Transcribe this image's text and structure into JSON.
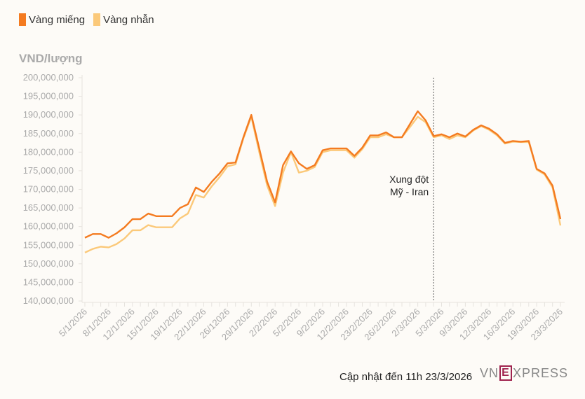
{
  "legend": [
    {
      "name": "Vàng miếng",
      "color": "#f47b20"
    },
    {
      "name": "Vàng nhẫn",
      "color": "#fbc97a"
    }
  ],
  "footer": {
    "updated": "Cập nhật đến 11h 23/3/2026",
    "logo": "VNEXPRESS"
  },
  "chart_data": {
    "type": "line",
    "ylabel": "VND/lượng",
    "ylim": [
      140000000,
      200000000
    ],
    "yticks": [
      140000000,
      145000000,
      150000000,
      155000000,
      160000000,
      165000000,
      170000000,
      175000000,
      180000000,
      185000000,
      190000000,
      195000000,
      200000000
    ],
    "ytick_labels": [
      "140,000,000",
      "145,000,000",
      "150,000,000",
      "155,000,000",
      "160,000,000",
      "165,000,000",
      "170,000,000",
      "175,000,000",
      "180,000,000",
      "185,000,000",
      "190,000,000",
      "195,000,000",
      "200,000,000"
    ],
    "x_tick_every": 3,
    "x_tick_labels": [
      "5/1/2026",
      "8/1/2026",
      "12/1/2026",
      "15/1/2026",
      "19/1/2026",
      "22/1/2026",
      "26/12026",
      "29/1/2026",
      "2/2/2026",
      "5/2/2026",
      "9/2/2026",
      "12/2/2026",
      "23/2/2026",
      "26/2/2026",
      "2/3/2026",
      "5/3/2026",
      "9/3/2026",
      "12/3/2026",
      "16/3/2026",
      "19/3/2026",
      "23/3/2026"
    ],
    "grid": false,
    "legend_position": "top-left",
    "annotation": {
      "index": 44,
      "lines": [
        "Xung đột",
        "Mỹ - Iran"
      ]
    },
    "series": [
      {
        "name": "Vàng miếng",
        "color": "#f47b20",
        "values_millions": [
          157,
          158,
          158,
          157,
          158.2,
          159.8,
          162,
          162,
          163.5,
          162.8,
          162.8,
          162.8,
          165,
          166,
          170.5,
          169.3,
          172,
          174.3,
          177,
          177.2,
          184,
          190,
          181,
          172,
          166.5,
          176.5,
          180.2,
          177,
          175.5,
          176.5,
          180.5,
          181,
          181,
          181,
          179,
          181.2,
          184.5,
          184.5,
          185.3,
          184,
          184,
          187.5,
          191,
          188.5,
          184.3,
          184.8,
          184,
          185,
          184.2,
          186,
          187.2,
          186.3,
          184.8,
          182.5,
          183,
          182.8,
          183,
          175.5,
          174.3,
          171,
          162
        ]
      },
      {
        "name": "Vàng nhẫn",
        "color": "#fbc97a",
        "values_millions": [
          153,
          154,
          154.6,
          154.4,
          155.3,
          156.8,
          159,
          159,
          160.4,
          159.8,
          159.8,
          159.8,
          162.2,
          163.5,
          168.5,
          167.8,
          170.8,
          173.3,
          176.2,
          176.7,
          183.7,
          189.5,
          180,
          171,
          165.5,
          174.5,
          180,
          174.5,
          175,
          176,
          180,
          180.5,
          180.5,
          180.5,
          178.5,
          180.8,
          184,
          184,
          184.8,
          184,
          184,
          186.7,
          189.5,
          188,
          184,
          184.5,
          183.5,
          184.5,
          184,
          185.8,
          187,
          186,
          184.5,
          182.3,
          182.8,
          182.7,
          182.7,
          175.3,
          174,
          170.5,
          160.3
        ]
      }
    ]
  }
}
